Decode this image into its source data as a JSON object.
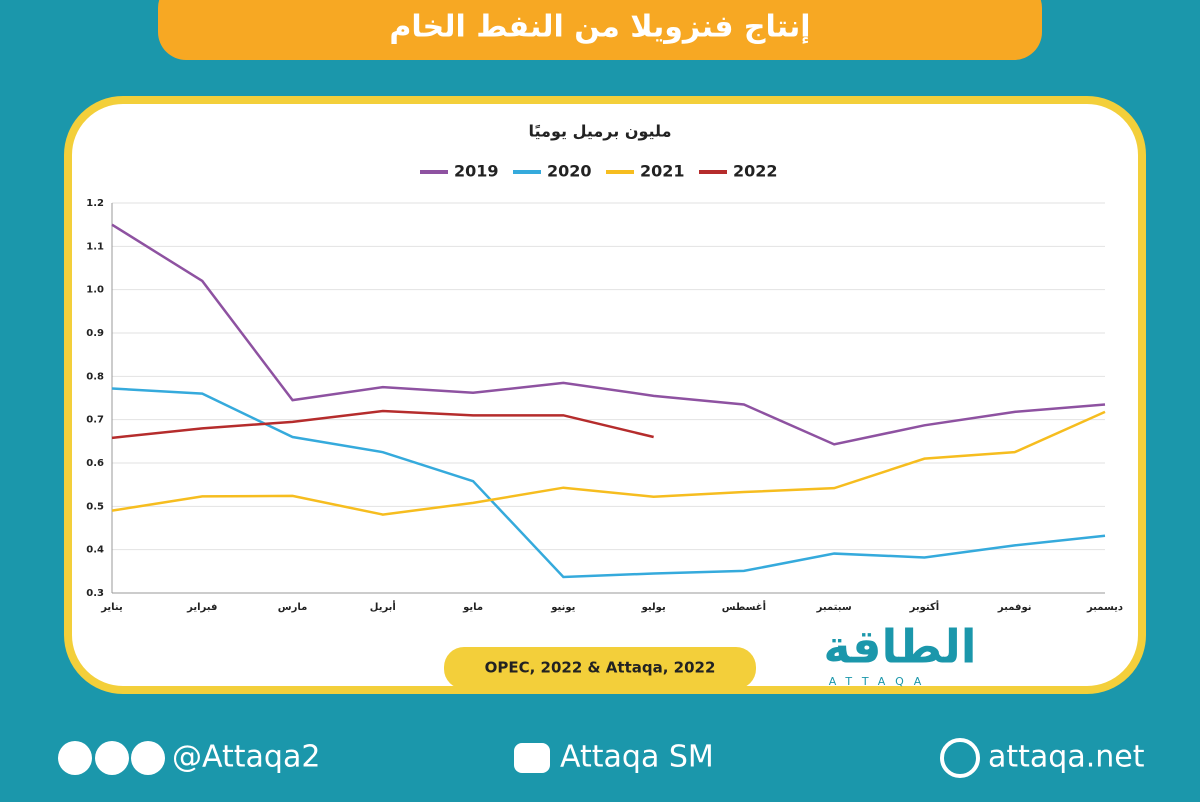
{
  "chart_data": {
    "type": "line",
    "title": "إنتاج فنزويلا من النفط الخام",
    "subtitle": "مليون برميل يوميًا",
    "categories": [
      "يناير",
      "فبراير",
      "مارس",
      "أبريل",
      "مايو",
      "يونيو",
      "يوليو",
      "أغسطس",
      "سبتمبر",
      "أكتوبر",
      "نوفمبر",
      "ديسمبر"
    ],
    "series": [
      {
        "name": "2019",
        "color": "#8e52a1",
        "values": [
          1.15,
          1.02,
          0.745,
          0.775,
          0.762,
          0.785,
          0.755,
          0.735,
          0.643,
          0.687,
          0.718,
          0.735
        ]
      },
      {
        "name": "2020",
        "color": "#35aadc",
        "values": [
          0.772,
          0.76,
          0.66,
          0.625,
          0.558,
          0.337,
          0.345,
          0.351,
          0.391,
          0.382,
          0.41,
          0.432
        ]
      },
      {
        "name": "2021",
        "color": "#f6bd1f",
        "values": [
          0.49,
          0.523,
          0.524,
          0.481,
          0.508,
          0.543,
          0.522,
          0.533,
          0.542,
          0.61,
          0.625,
          0.718
        ]
      },
      {
        "name": "2022",
        "color": "#b52c2c",
        "values": [
          0.658,
          0.68,
          0.695,
          0.72,
          0.71,
          0.71,
          0.66,
          null,
          null,
          null,
          null,
          null
        ]
      }
    ],
    "ylim": [
      0.3,
      1.2
    ],
    "yticks": [
      0.3,
      0.4,
      0.5,
      0.6,
      0.7,
      0.8,
      0.9,
      {
        "value": 1,
        "label": "1.0"
      },
      1.1,
      1.2
    ],
    "grid": true,
    "legend": "top",
    "source": "OPEC, 2022 & Attaqa, 2022"
  },
  "logo": {
    "name": "الطاقة",
    "latin": "ATTAQA"
  },
  "footer": {
    "social": "@Attaqa2",
    "youtube": "Attaqa SM",
    "web": "attaqa.net"
  }
}
